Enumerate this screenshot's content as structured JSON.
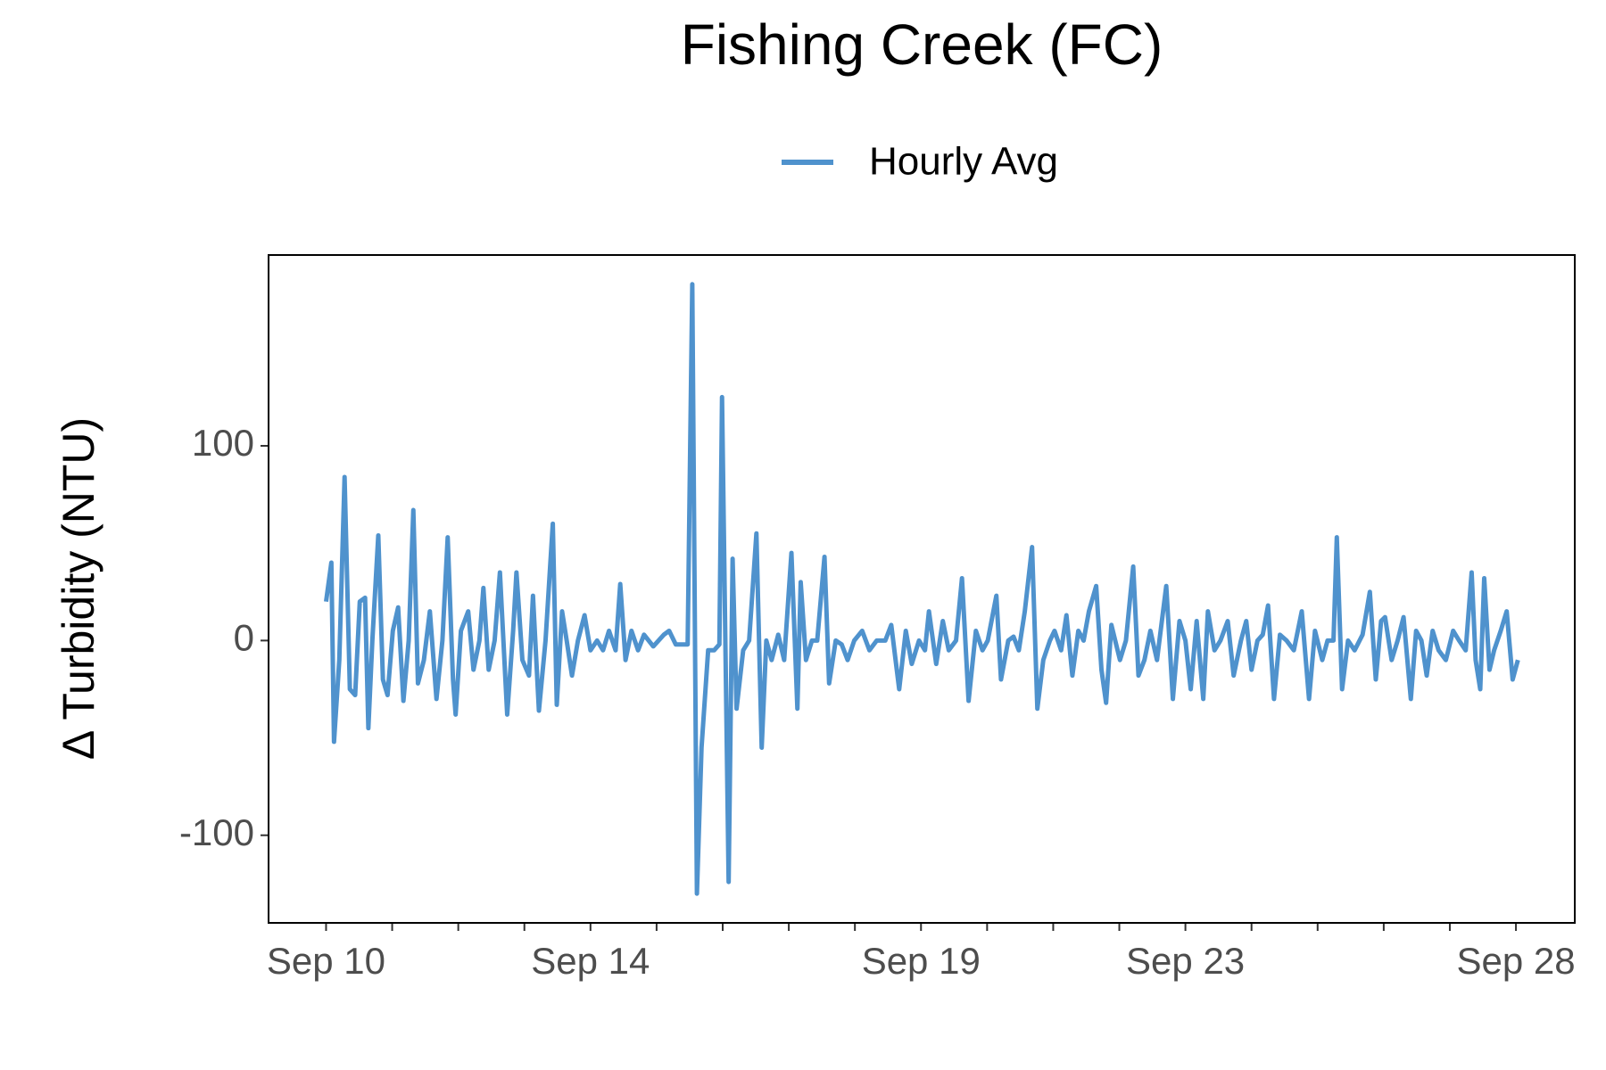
{
  "chart_data": {
    "type": "line",
    "title": "Fishing Creek (FC)",
    "ylabel": "Δ Turbidity (NTU)",
    "xlim": [
      9.13,
      28.89
    ],
    "ylim": [
      -145,
      198
    ],
    "xticks": [
      {
        "value": 10,
        "label": "Sep 10"
      },
      {
        "value": 14,
        "label": "Sep 14"
      },
      {
        "value": 19,
        "label": "Sep 19"
      },
      {
        "value": 23,
        "label": "Sep 23"
      },
      {
        "value": 28,
        "label": "Sep 28"
      }
    ],
    "xticks_minor": [
      11,
      12,
      13,
      15,
      16,
      17,
      18,
      20,
      21,
      22,
      24,
      25,
      26,
      27
    ],
    "yticks": [
      -100,
      0,
      100
    ],
    "legend": "top",
    "x": [
      10.0,
      10.08,
      10.12,
      10.2,
      10.28,
      10.36,
      10.44,
      10.51,
      10.59,
      10.64,
      10.7,
      10.79,
      10.86,
      10.93,
      11.01,
      11.09,
      11.17,
      11.25,
      11.32,
      11.39,
      11.48,
      11.57,
      11.67,
      11.76,
      11.84,
      11.92,
      11.96,
      12.04,
      12.15,
      12.23,
      12.32,
      12.38,
      12.46,
      12.55,
      12.63,
      12.74,
      12.83,
      12.88,
      12.97,
      13.07,
      13.13,
      13.22,
      13.32,
      13.43,
      13.49,
      13.57,
      13.64,
      13.72,
      13.81,
      13.91,
      14.0,
      14.1,
      14.19,
      14.28,
      14.38,
      14.45,
      14.53,
      14.62,
      14.72,
      14.81,
      14.95,
      15.11,
      15.19,
      15.29,
      15.47,
      15.54,
      15.61,
      15.68,
      15.78,
      15.87,
      15.95,
      15.99,
      16.09,
      16.15,
      16.21,
      16.31,
      16.4,
      16.51,
      16.59,
      16.66,
      16.74,
      16.84,
      16.93,
      17.04,
      17.13,
      17.18,
      17.26,
      17.35,
      17.43,
      17.54,
      17.61,
      17.71,
      17.8,
      17.89,
      17.99,
      18.11,
      18.22,
      18.33,
      18.46,
      18.55,
      18.67,
      18.77,
      18.86,
      18.97,
      19.06,
      19.12,
      19.23,
      19.33,
      19.42,
      19.53,
      19.62,
      19.72,
      19.83,
      19.93,
      20.01,
      20.14,
      20.21,
      20.32,
      20.4,
      20.48,
      20.57,
      20.68,
      20.76,
      20.85,
      20.95,
      21.02,
      21.12,
      21.2,
      21.29,
      21.38,
      21.46,
      21.54,
      21.65,
      21.73,
      21.8,
      21.88,
      22.01,
      22.1,
      22.21,
      22.29,
      22.38,
      22.47,
      22.57,
      22.71,
      22.81,
      22.91,
      23.0,
      23.08,
      23.17,
      23.27,
      23.34,
      23.44,
      23.53,
      23.64,
      23.73,
      23.84,
      23.92,
      24.0,
      24.09,
      24.17,
      24.25,
      24.34,
      24.43,
      24.53,
      24.64,
      24.76,
      24.87,
      24.96,
      25.07,
      25.15,
      25.24,
      25.29,
      25.37,
      25.46,
      25.56,
      25.68,
      25.79,
      25.88,
      25.96,
      26.02,
      26.12,
      26.21,
      26.3,
      26.41,
      26.49,
      26.57,
      26.65,
      26.74,
      26.83,
      26.94,
      27.05,
      27.14,
      27.24,
      27.33,
      27.39,
      27.46,
      27.52,
      27.6,
      27.67,
      27.77,
      27.86,
      27.95,
      28.03
    ],
    "series": [
      {
        "name": "Hourly Avg",
        "color": "#4f92cd",
        "values": [
          20,
          40,
          -52,
          -10,
          84,
          -25,
          -28,
          20,
          22,
          -45,
          0,
          54,
          -20,
          -28,
          5,
          17,
          -31,
          0,
          67,
          -22,
          -10,
          15,
          -30,
          0,
          53,
          -20,
          -38,
          5,
          15,
          -15,
          0,
          27,
          -15,
          0,
          35,
          -38,
          5,
          35,
          -10,
          -18,
          23,
          -36,
          0,
          60,
          -33,
          15,
          0,
          -18,
          0,
          13,
          -5,
          0,
          -5,
          5,
          -5,
          29,
          -10,
          5,
          -5,
          3,
          -3,
          3,
          5,
          -2,
          -2,
          183,
          -130,
          -55,
          -5,
          -5,
          -2,
          125,
          -124,
          42,
          -35,
          -5,
          0,
          55,
          -55,
          0,
          -10,
          3,
          -10,
          45,
          -35,
          30,
          -10,
          0,
          0,
          43,
          -22,
          0,
          -2,
          -10,
          0,
          5,
          -5,
          0,
          0,
          8,
          -25,
          5,
          -12,
          0,
          -5,
          15,
          -12,
          10,
          -5,
          0,
          32,
          -31,
          5,
          -5,
          0,
          23,
          -20,
          0,
          2,
          -5,
          15,
          48,
          -35,
          -10,
          0,
          5,
          -5,
          13,
          -18,
          5,
          0,
          15,
          28,
          -15,
          -32,
          8,
          -10,
          0,
          38,
          -18,
          -10,
          5,
          -10,
          28,
          -30,
          10,
          0,
          -25,
          10,
          -30,
          15,
          -5,
          0,
          10,
          -18,
          0,
          10,
          -15,
          0,
          3,
          18,
          -30,
          3,
          0,
          -5,
          15,
          -30,
          5,
          -10,
          0,
          0,
          53,
          -25,
          0,
          -5,
          3,
          25,
          -20,
          10,
          12,
          -10,
          0,
          12,
          -30,
          5,
          0,
          -18,
          5,
          -5,
          -10,
          5,
          0,
          -5,
          35,
          -10,
          -25,
          32,
          -15,
          -5,
          5,
          15,
          -20,
          -10
        ]
      }
    ]
  }
}
